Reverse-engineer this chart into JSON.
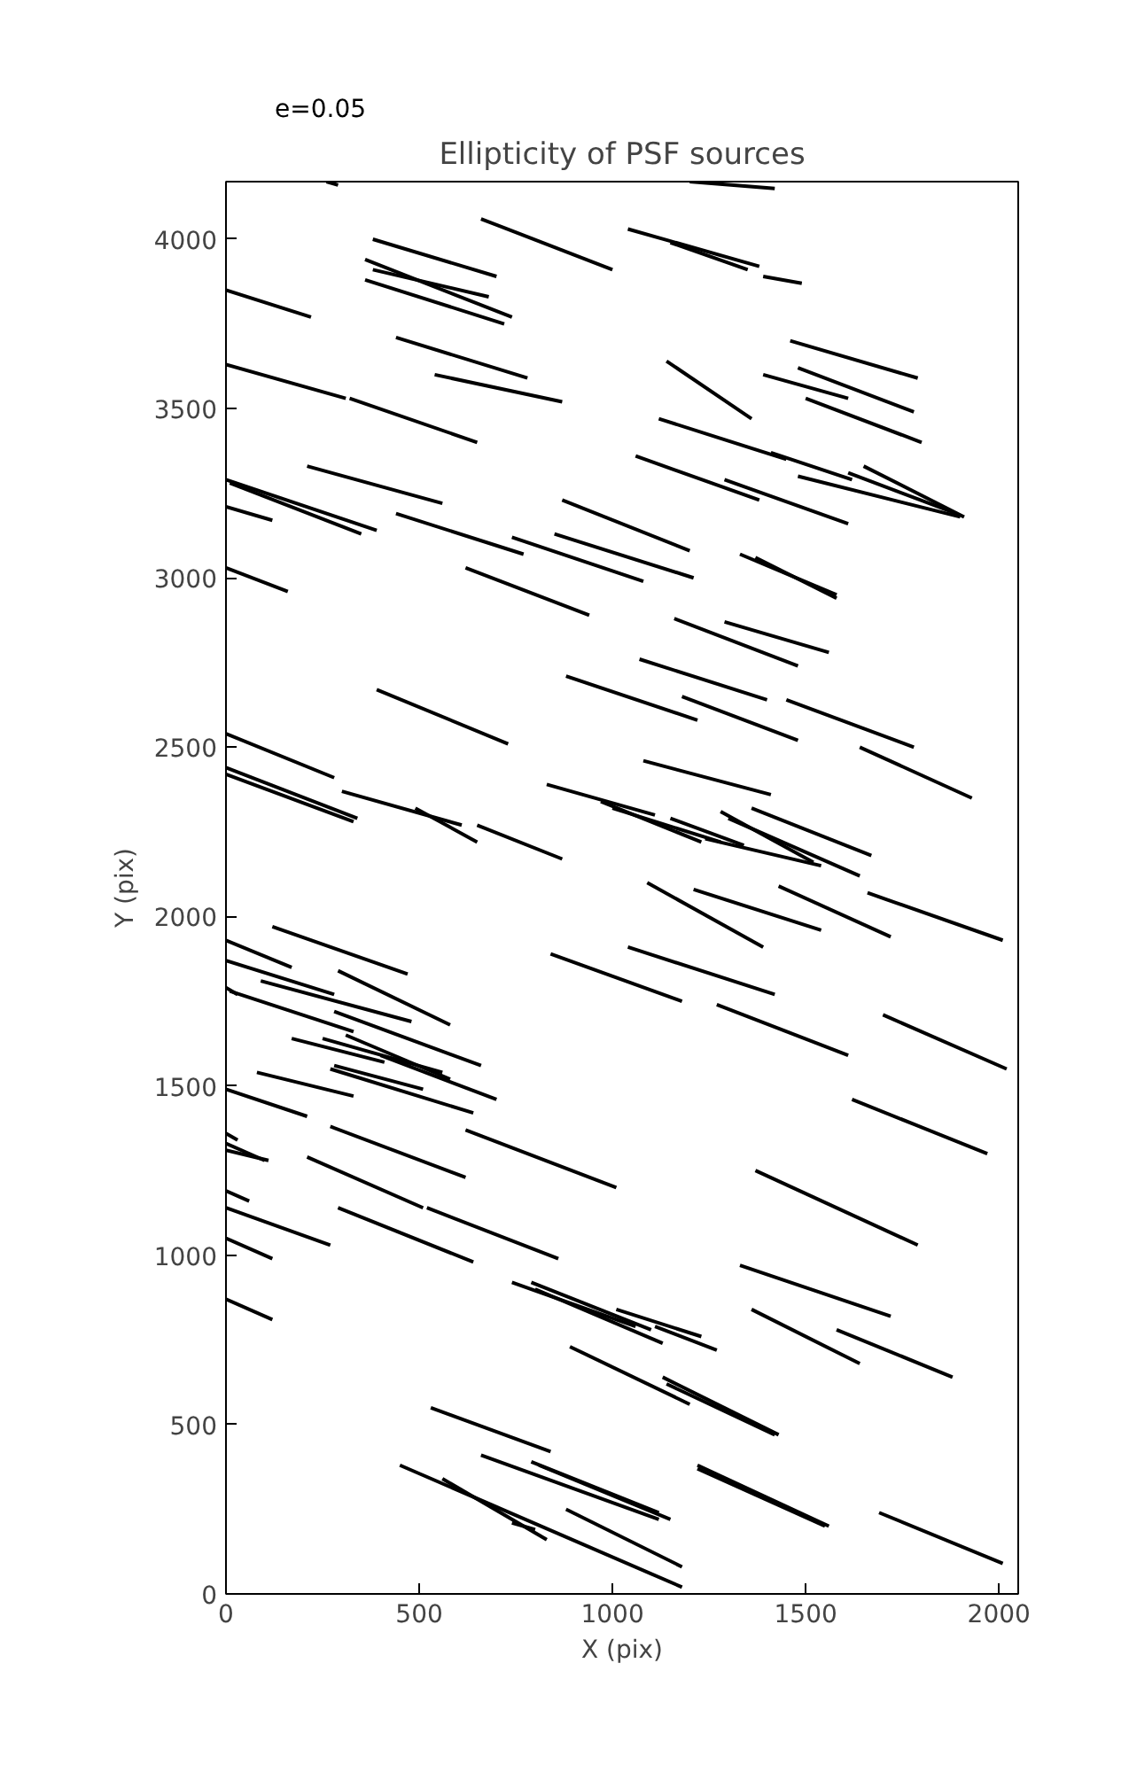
{
  "chart_data": {
    "type": "line",
    "title": "Ellipticity of PSF sources",
    "xlabel": "X (pix)",
    "ylabel": "Y (pix)",
    "annotations": [
      "e=0.05"
    ],
    "color": "#000000",
    "xlim": [
      0,
      2050
    ],
    "ylim": [
      0,
      4170
    ],
    "xticks": [
      0,
      500,
      1000,
      1500,
      2000
    ],
    "yticks": [
      0,
      500,
      1000,
      1500,
      2000,
      2500,
      3000,
      3500,
      4000
    ],
    "grid": false,
    "series": [
      {
        "x": [
          260,
          290
        ],
        "values": [
          4170,
          4160
        ]
      },
      {
        "x": [
          1200,
          1420
        ],
        "values": [
          4170,
          4150
        ]
      },
      {
        "x": [
          380,
          700
        ],
        "values": [
          4000,
          3890
        ]
      },
      {
        "x": [
          660,
          1000
        ],
        "values": [
          4060,
          3910
        ]
      },
      {
        "x": [
          1040,
          1380
        ],
        "values": [
          4030,
          3920
        ]
      },
      {
        "x": [
          1150,
          1350
        ],
        "values": [
          3990,
          3910
        ]
      },
      {
        "x": [
          1390,
          1490
        ],
        "values": [
          3890,
          3870
        ]
      },
      {
        "x": [
          360,
          740
        ],
        "values": [
          3940,
          3770
        ]
      },
      {
        "x": [
          380,
          680
        ],
        "values": [
          3910,
          3830
        ]
      },
      {
        "x": [
          360,
          720
        ],
        "values": [
          3880,
          3750
        ]
      },
      {
        "x": [
          0,
          220
        ],
        "values": [
          3850,
          3770
        ]
      },
      {
        "x": [
          440,
          780
        ],
        "values": [
          3710,
          3590
        ]
      },
      {
        "x": [
          1460,
          1790
        ],
        "values": [
          3700,
          3590
        ]
      },
      {
        "x": [
          1140,
          1360
        ],
        "values": [
          3640,
          3470
        ]
      },
      {
        "x": [
          1390,
          1610
        ],
        "values": [
          3600,
          3530
        ]
      },
      {
        "x": [
          1480,
          1780
        ],
        "values": [
          3620,
          3490
        ]
      },
      {
        "x": [
          0,
          310
        ],
        "values": [
          3630,
          3530
        ]
      },
      {
        "x": [
          540,
          870
        ],
        "values": [
          3600,
          3520
        ]
      },
      {
        "x": [
          1500,
          1800
        ],
        "values": [
          3530,
          3400
        ]
      },
      {
        "x": [
          320,
          650
        ],
        "values": [
          3530,
          3400
        ]
      },
      {
        "x": [
          1120,
          1450
        ],
        "values": [
          3470,
          3350
        ]
      },
      {
        "x": [
          1410,
          1620
        ],
        "values": [
          3370,
          3290
        ]
      },
      {
        "x": [
          1060,
          1380
        ],
        "values": [
          3360,
          3230
        ]
      },
      {
        "x": [
          1650,
          1910
        ],
        "values": [
          3330,
          3180
        ]
      },
      {
        "x": [
          210,
          560
        ],
        "values": [
          3330,
          3220
        ]
      },
      {
        "x": [
          1610,
          1890
        ],
        "values": [
          3310,
          3190
        ]
      },
      {
        "x": [
          1480,
          1900
        ],
        "values": [
          3300,
          3180
        ]
      },
      {
        "x": [
          1290,
          1610
        ],
        "values": [
          3290,
          3160
        ]
      },
      {
        "x": [
          0,
          390
        ],
        "values": [
          3290,
          3140
        ]
      },
      {
        "x": [
          10,
          350
        ],
        "values": [
          3280,
          3130
        ]
      },
      {
        "x": [
          870,
          1200
        ],
        "values": [
          3230,
          3080
        ]
      },
      {
        "x": [
          0,
          120
        ],
        "values": [
          3210,
          3170
        ]
      },
      {
        "x": [
          440,
          770
        ],
        "values": [
          3190,
          3070
        ]
      },
      {
        "x": [
          740,
          1080
        ],
        "values": [
          3120,
          2990
        ]
      },
      {
        "x": [
          850,
          1210
        ],
        "values": [
          3130,
          3000
        ]
      },
      {
        "x": [
          1330,
          1580
        ],
        "values": [
          3070,
          2950
        ]
      },
      {
        "x": [
          1370,
          1580
        ],
        "values": [
          3060,
          2940
        ]
      },
      {
        "x": [
          0,
          160
        ],
        "values": [
          3030,
          2960
        ]
      },
      {
        "x": [
          620,
          940
        ],
        "values": [
          3030,
          2890
        ]
      },
      {
        "x": [
          1160,
          1480
        ],
        "values": [
          2880,
          2740
        ]
      },
      {
        "x": [
          1290,
          1560
        ],
        "values": [
          2870,
          2780
        ]
      },
      {
        "x": [
          1070,
          1400
        ],
        "values": [
          2760,
          2640
        ]
      },
      {
        "x": [
          880,
          1220
        ],
        "values": [
          2710,
          2580
        ]
      },
      {
        "x": [
          390,
          730
        ],
        "values": [
          2670,
          2510
        ]
      },
      {
        "x": [
          1180,
          1480
        ],
        "values": [
          2650,
          2520
        ]
      },
      {
        "x": [
          1450,
          1780
        ],
        "values": [
          2640,
          2500
        ]
      },
      {
        "x": [
          0,
          280
        ],
        "values": [
          2540,
          2410
        ]
      },
      {
        "x": [
          1640,
          1930
        ],
        "values": [
          2500,
          2350
        ]
      },
      {
        "x": [
          1080,
          1410
        ],
        "values": [
          2460,
          2360
        ]
      },
      {
        "x": [
          0,
          340
        ],
        "values": [
          2440,
          2290
        ]
      },
      {
        "x": [
          0,
          330
        ],
        "values": [
          2420,
          2280
        ]
      },
      {
        "x": [
          300,
          610
        ],
        "values": [
          2370,
          2270
        ]
      },
      {
        "x": [
          830,
          1110
        ],
        "values": [
          2390,
          2300
        ]
      },
      {
        "x": [
          970,
          1230
        ],
        "values": [
          2340,
          2220
        ]
      },
      {
        "x": [
          490,
          650
        ],
        "values": [
          2320,
          2220
        ]
      },
      {
        "x": [
          650,
          870
        ],
        "values": [
          2270,
          2170
        ]
      },
      {
        "x": [
          1000,
          1280
        ],
        "values": [
          2320,
          2220
        ]
      },
      {
        "x": [
          1150,
          1340
        ],
        "values": [
          2290,
          2210
        ]
      },
      {
        "x": [
          1280,
          1520
        ],
        "values": [
          2310,
          2160
        ]
      },
      {
        "x": [
          1300,
          1640
        ],
        "values": [
          2290,
          2120
        ]
      },
      {
        "x": [
          1360,
          1670
        ],
        "values": [
          2320,
          2180
        ]
      },
      {
        "x": [
          1240,
          1540
        ],
        "values": [
          2230,
          2150
        ]
      },
      {
        "x": [
          1090,
          1390
        ],
        "values": [
          2100,
          1910
        ]
      },
      {
        "x": [
          1210,
          1540
        ],
        "values": [
          2080,
          1960
        ]
      },
      {
        "x": [
          1430,
          1720
        ],
        "values": [
          2090,
          1940
        ]
      },
      {
        "x": [
          1660,
          2010
        ],
        "values": [
          2070,
          1930
        ]
      },
      {
        "x": [
          0,
          170
        ],
        "values": [
          1930,
          1850
        ]
      },
      {
        "x": [
          120,
          470
        ],
        "values": [
          1970,
          1830
        ]
      },
      {
        "x": [
          0,
          280
        ],
        "values": [
          1870,
          1770
        ]
      },
      {
        "x": [
          290,
          580
        ],
        "values": [
          1840,
          1680
        ]
      },
      {
        "x": [
          90,
          480
        ],
        "values": [
          1810,
          1690
        ]
      },
      {
        "x": [
          10,
          330
        ],
        "values": [
          1780,
          1660
        ]
      },
      {
        "x": [
          0,
          30
        ],
        "values": [
          1790,
          1770
        ]
      },
      {
        "x": [
          280,
          660
        ],
        "values": [
          1720,
          1560
        ]
      },
      {
        "x": [
          310,
          580
        ],
        "values": [
          1650,
          1520
        ]
      },
      {
        "x": [
          250,
          560
        ],
        "values": [
          1640,
          1540
        ]
      },
      {
        "x": [
          840,
          1180
        ],
        "values": [
          1890,
          1750
        ]
      },
      {
        "x": [
          1040,
          1420
        ],
        "values": [
          1910,
          1770
        ]
      },
      {
        "x": [
          1270,
          1610
        ],
        "values": [
          1740,
          1590
        ]
      },
      {
        "x": [
          1700,
          2020
        ],
        "values": [
          1710,
          1550
        ]
      },
      {
        "x": [
          170,
          410
        ],
        "values": [
          1640,
          1570
        ]
      },
      {
        "x": [
          400,
          700
        ],
        "values": [
          1590,
          1460
        ]
      },
      {
        "x": [
          280,
          510
        ],
        "values": [
          1560,
          1490
        ]
      },
      {
        "x": [
          80,
          330
        ],
        "values": [
          1540,
          1470
        ]
      },
      {
        "x": [
          270,
          640
        ],
        "values": [
          1550,
          1420
        ]
      },
      {
        "x": [
          0,
          210
        ],
        "values": [
          1490,
          1410
        ]
      },
      {
        "x": [
          0,
          30
        ],
        "values": [
          1360,
          1340
        ]
      },
      {
        "x": [
          270,
          620
        ],
        "values": [
          1380,
          1230
        ]
      },
      {
        "x": [
          1620,
          1970
        ],
        "values": [
          1460,
          1300
        ]
      },
      {
        "x": [
          620,
          1010
        ],
        "values": [
          1370,
          1200
        ]
      },
      {
        "x": [
          0,
          100
        ],
        "values": [
          1330,
          1280
        ]
      },
      {
        "x": [
          0,
          110
        ],
        "values": [
          1310,
          1280
        ]
      },
      {
        "x": [
          210,
          510
        ],
        "values": [
          1290,
          1140
        ]
      },
      {
        "x": [
          1370,
          1790
        ],
        "values": [
          1250,
          1030
        ]
      },
      {
        "x": [
          0,
          60
        ],
        "values": [
          1190,
          1160
        ]
      },
      {
        "x": [
          0,
          270
        ],
        "values": [
          1140,
          1030
        ]
      },
      {
        "x": [
          290,
          640
        ],
        "values": [
          1140,
          980
        ]
      },
      {
        "x": [
          520,
          860
        ],
        "values": [
          1140,
          990
        ]
      },
      {
        "x": [
          0,
          120
        ],
        "values": [
          1050,
          990
        ]
      },
      {
        "x": [
          1330,
          1720
        ],
        "values": [
          970,
          820
        ]
      },
      {
        "x": [
          740,
          1060
        ],
        "values": [
          920,
          790
        ]
      },
      {
        "x": [
          790,
          1100
        ],
        "values": [
          920,
          780
        ]
      },
      {
        "x": [
          800,
          1130
        ],
        "values": [
          900,
          740
        ]
      },
      {
        "x": [
          1010,
          1230
        ],
        "values": [
          840,
          760
        ]
      },
      {
        "x": [
          1110,
          1270
        ],
        "values": [
          790,
          720
        ]
      },
      {
        "x": [
          1360,
          1640
        ],
        "values": [
          840,
          680
        ]
      },
      {
        "x": [
          1580,
          1880
        ],
        "values": [
          780,
          640
        ]
      },
      {
        "x": [
          0,
          120
        ],
        "values": [
          870,
          810
        ]
      },
      {
        "x": [
          890,
          1200
        ],
        "values": [
          730,
          560
        ]
      },
      {
        "x": [
          1130,
          1430
        ],
        "values": [
          640,
          470
        ]
      },
      {
        "x": [
          1140,
          1420
        ],
        "values": [
          620,
          470
        ]
      },
      {
        "x": [
          530,
          840
        ],
        "values": [
          550,
          420
        ]
      },
      {
        "x": [
          1220,
          1560
        ],
        "values": [
          380,
          200
        ]
      },
      {
        "x": [
          1220,
          1550
        ],
        "values": [
          370,
          200
        ]
      },
      {
        "x": [
          450,
          1180
        ],
        "values": [
          380,
          20
        ]
      },
      {
        "x": [
          560,
          830
        ],
        "values": [
          340,
          160
        ]
      },
      {
        "x": [
          660,
          1120
        ],
        "values": [
          410,
          220
        ]
      },
      {
        "x": [
          810,
          1150
        ],
        "values": [
          380,
          220
        ]
      },
      {
        "x": [
          790,
          1120
        ],
        "values": [
          390,
          240
        ]
      },
      {
        "x": [
          880,
          1180
        ],
        "values": [
          250,
          80
        ]
      },
      {
        "x": [
          740,
          800
        ],
        "values": [
          210,
          190
        ]
      },
      {
        "x": [
          1690,
          2010
        ],
        "values": [
          240,
          90
        ]
      }
    ]
  }
}
